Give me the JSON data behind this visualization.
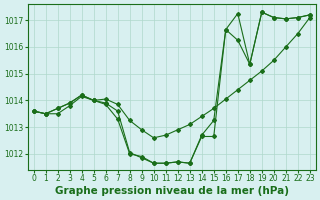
{
  "x": [
    0,
    1,
    2,
    3,
    4,
    5,
    6,
    7,
    8,
    9,
    10,
    11,
    12,
    13,
    14,
    15,
    16,
    17,
    18,
    19,
    20,
    21,
    22,
    23
  ],
  "line1": [
    1013.6,
    1013.5,
    1013.5,
    1013.8,
    1014.15,
    1014.0,
    1014.05,
    1013.85,
    1013.25,
    1012.9,
    1012.6,
    1012.7,
    1012.9,
    1013.1,
    1013.4,
    1013.7,
    1014.05,
    1014.4,
    1014.75,
    1015.1,
    1015.5,
    1016.0,
    1016.5,
    1017.1
  ],
  "line2": [
    1013.6,
    1013.5,
    1013.7,
    1013.9,
    1014.2,
    1014.0,
    1013.9,
    1013.6,
    1012.05,
    1011.85,
    1011.65,
    1011.65,
    1011.7,
    1011.65,
    1012.65,
    1012.65,
    1016.65,
    1017.25,
    1015.35,
    1017.3,
    1017.1,
    1017.05,
    1017.1,
    1017.2
  ],
  "line3": [
    1013.6,
    1013.5,
    1013.7,
    1013.9,
    1014.2,
    1014.0,
    1013.85,
    1013.3,
    1012.0,
    1011.9,
    1011.65,
    1011.65,
    1011.7,
    1011.65,
    1012.7,
    1013.25,
    1016.65,
    1016.25,
    1015.35,
    1017.3,
    1017.1,
    1017.05,
    1017.1,
    1017.2
  ],
  "line_color": "#1a6e1a",
  "bg_color": "#d8f0f0",
  "grid_color": "#afd8cc",
  "xlabel": "Graphe pression niveau de la mer (hPa)",
  "ylim": [
    1011.4,
    1017.6
  ],
  "xlim": [
    -0.5,
    23.5
  ],
  "yticks": [
    1012,
    1013,
    1014,
    1015,
    1016,
    1017
  ],
  "xticks": [
    0,
    1,
    2,
    3,
    4,
    5,
    6,
    7,
    8,
    9,
    10,
    11,
    12,
    13,
    14,
    15,
    16,
    17,
    18,
    19,
    20,
    21,
    22,
    23
  ],
  "tick_fontsize": 5.5,
  "xlabel_fontsize": 7.5
}
